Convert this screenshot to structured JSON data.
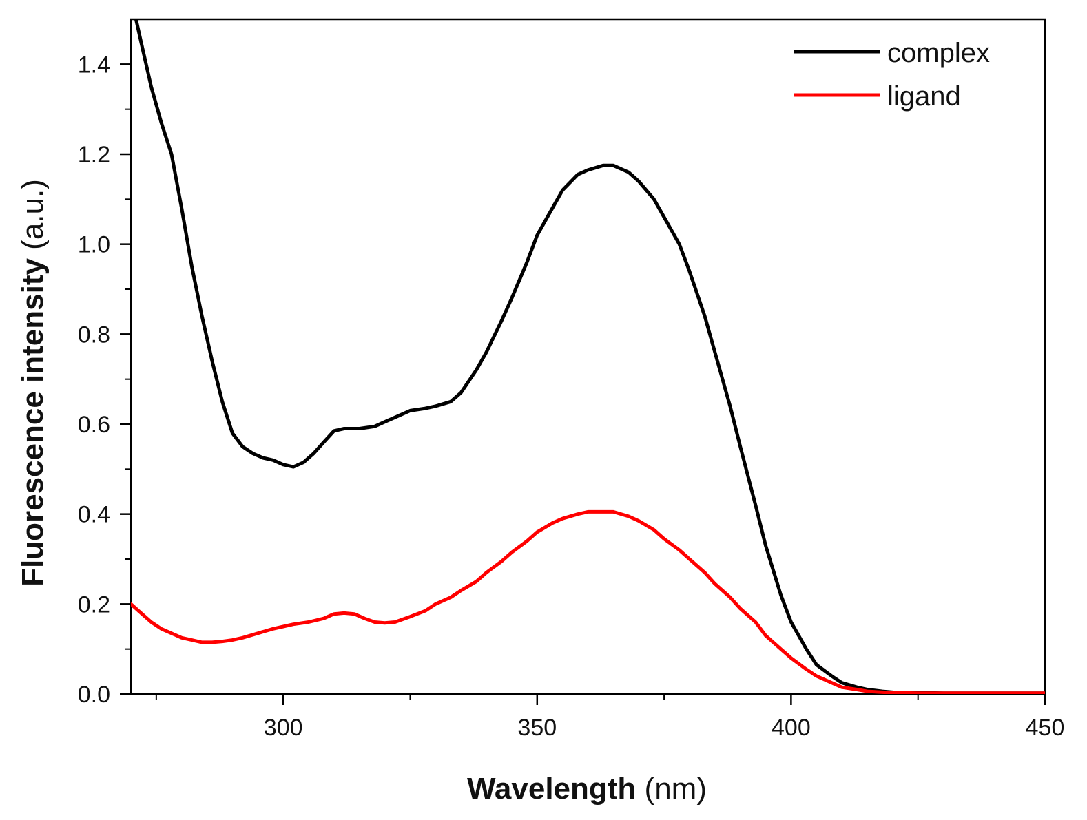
{
  "chart_data": {
    "type": "line",
    "title": "",
    "xlabel_bold": "Wavelength",
    "xlabel_unit": "(nm)",
    "ylabel_bold": "Fluorescence intensity",
    "ylabel_unit": "(a.u.)",
    "xlim": [
      270,
      450
    ],
    "ylim": [
      0,
      1.5
    ],
    "xticks": [
      "300",
      "350",
      "400",
      "450"
    ],
    "xtick_values": [
      300,
      350,
      400,
      450
    ],
    "xminor_values": [
      275,
      325,
      375,
      425
    ],
    "yticks": [
      "0.0",
      "0.2",
      "0.4",
      "0.6",
      "0.8",
      "1.0",
      "1.2",
      "1.4"
    ],
    "ytick_values": [
      0.0,
      0.2,
      0.4,
      0.6,
      0.8,
      1.0,
      1.2,
      1.4
    ],
    "yminor_values": [
      0.1,
      0.3,
      0.5,
      0.7,
      0.9,
      1.1,
      1.3
    ],
    "grid": false,
    "legend_position": "top-right",
    "series": [
      {
        "name": "complex",
        "color": "#000000",
        "x": [
          271,
          272,
          274,
          276,
          278,
          280,
          282,
          284,
          286,
          288,
          290,
          292,
          294,
          296,
          298,
          300,
          302,
          304,
          306,
          308,
          310,
          312,
          315,
          318,
          320,
          322,
          325,
          328,
          330,
          333,
          335,
          338,
          340,
          343,
          345,
          348,
          350,
          353,
          355,
          358,
          360,
          363,
          365,
          368,
          370,
          373,
          375,
          378,
          380,
          383,
          385,
          388,
          390,
          393,
          395,
          398,
          400,
          403,
          405,
          408,
          410,
          413,
          415,
          418,
          420,
          425,
          430,
          435,
          440,
          445,
          450
        ],
        "y": [
          1.5,
          1.45,
          1.35,
          1.27,
          1.2,
          1.08,
          0.95,
          0.84,
          0.74,
          0.65,
          0.58,
          0.55,
          0.535,
          0.525,
          0.52,
          0.51,
          0.505,
          0.515,
          0.535,
          0.56,
          0.585,
          0.59,
          0.59,
          0.595,
          0.605,
          0.615,
          0.63,
          0.635,
          0.64,
          0.65,
          0.67,
          0.72,
          0.76,
          0.83,
          0.88,
          0.96,
          1.02,
          1.08,
          1.12,
          1.155,
          1.165,
          1.175,
          1.175,
          1.16,
          1.14,
          1.1,
          1.06,
          1.0,
          0.94,
          0.84,
          0.76,
          0.64,
          0.55,
          0.42,
          0.33,
          0.22,
          0.16,
          0.1,
          0.065,
          0.04,
          0.025,
          0.015,
          0.01,
          0.006,
          0.004,
          0.003,
          0.002,
          0.002,
          0.002,
          0.002,
          0.002
        ]
      },
      {
        "name": "ligand",
        "color": "#ff0000",
        "x": [
          270,
          272,
          274,
          276,
          278,
          280,
          282,
          284,
          286,
          288,
          290,
          292,
          295,
          298,
          300,
          302,
          305,
          308,
          310,
          312,
          314,
          316,
          318,
          320,
          322,
          325,
          328,
          330,
          333,
          335,
          338,
          340,
          343,
          345,
          348,
          350,
          353,
          355,
          358,
          360,
          363,
          365,
          368,
          370,
          373,
          375,
          378,
          380,
          383,
          385,
          388,
          390,
          393,
          395,
          398,
          400,
          403,
          405,
          408,
          410,
          413,
          415,
          418,
          420,
          425,
          430,
          435,
          440,
          445,
          450
        ],
        "y": [
          0.2,
          0.18,
          0.16,
          0.145,
          0.135,
          0.125,
          0.12,
          0.115,
          0.115,
          0.117,
          0.12,
          0.125,
          0.135,
          0.145,
          0.15,
          0.155,
          0.16,
          0.168,
          0.178,
          0.18,
          0.178,
          0.168,
          0.16,
          0.158,
          0.16,
          0.172,
          0.185,
          0.2,
          0.215,
          0.23,
          0.25,
          0.27,
          0.295,
          0.315,
          0.34,
          0.36,
          0.38,
          0.39,
          0.4,
          0.405,
          0.405,
          0.405,
          0.395,
          0.385,
          0.365,
          0.345,
          0.32,
          0.3,
          0.27,
          0.245,
          0.215,
          0.19,
          0.16,
          0.13,
          0.1,
          0.08,
          0.055,
          0.04,
          0.025,
          0.015,
          0.01,
          0.006,
          0.004,
          0.003,
          0.002,
          0.002,
          0.002,
          0.002,
          0.002,
          0.002
        ]
      }
    ]
  }
}
